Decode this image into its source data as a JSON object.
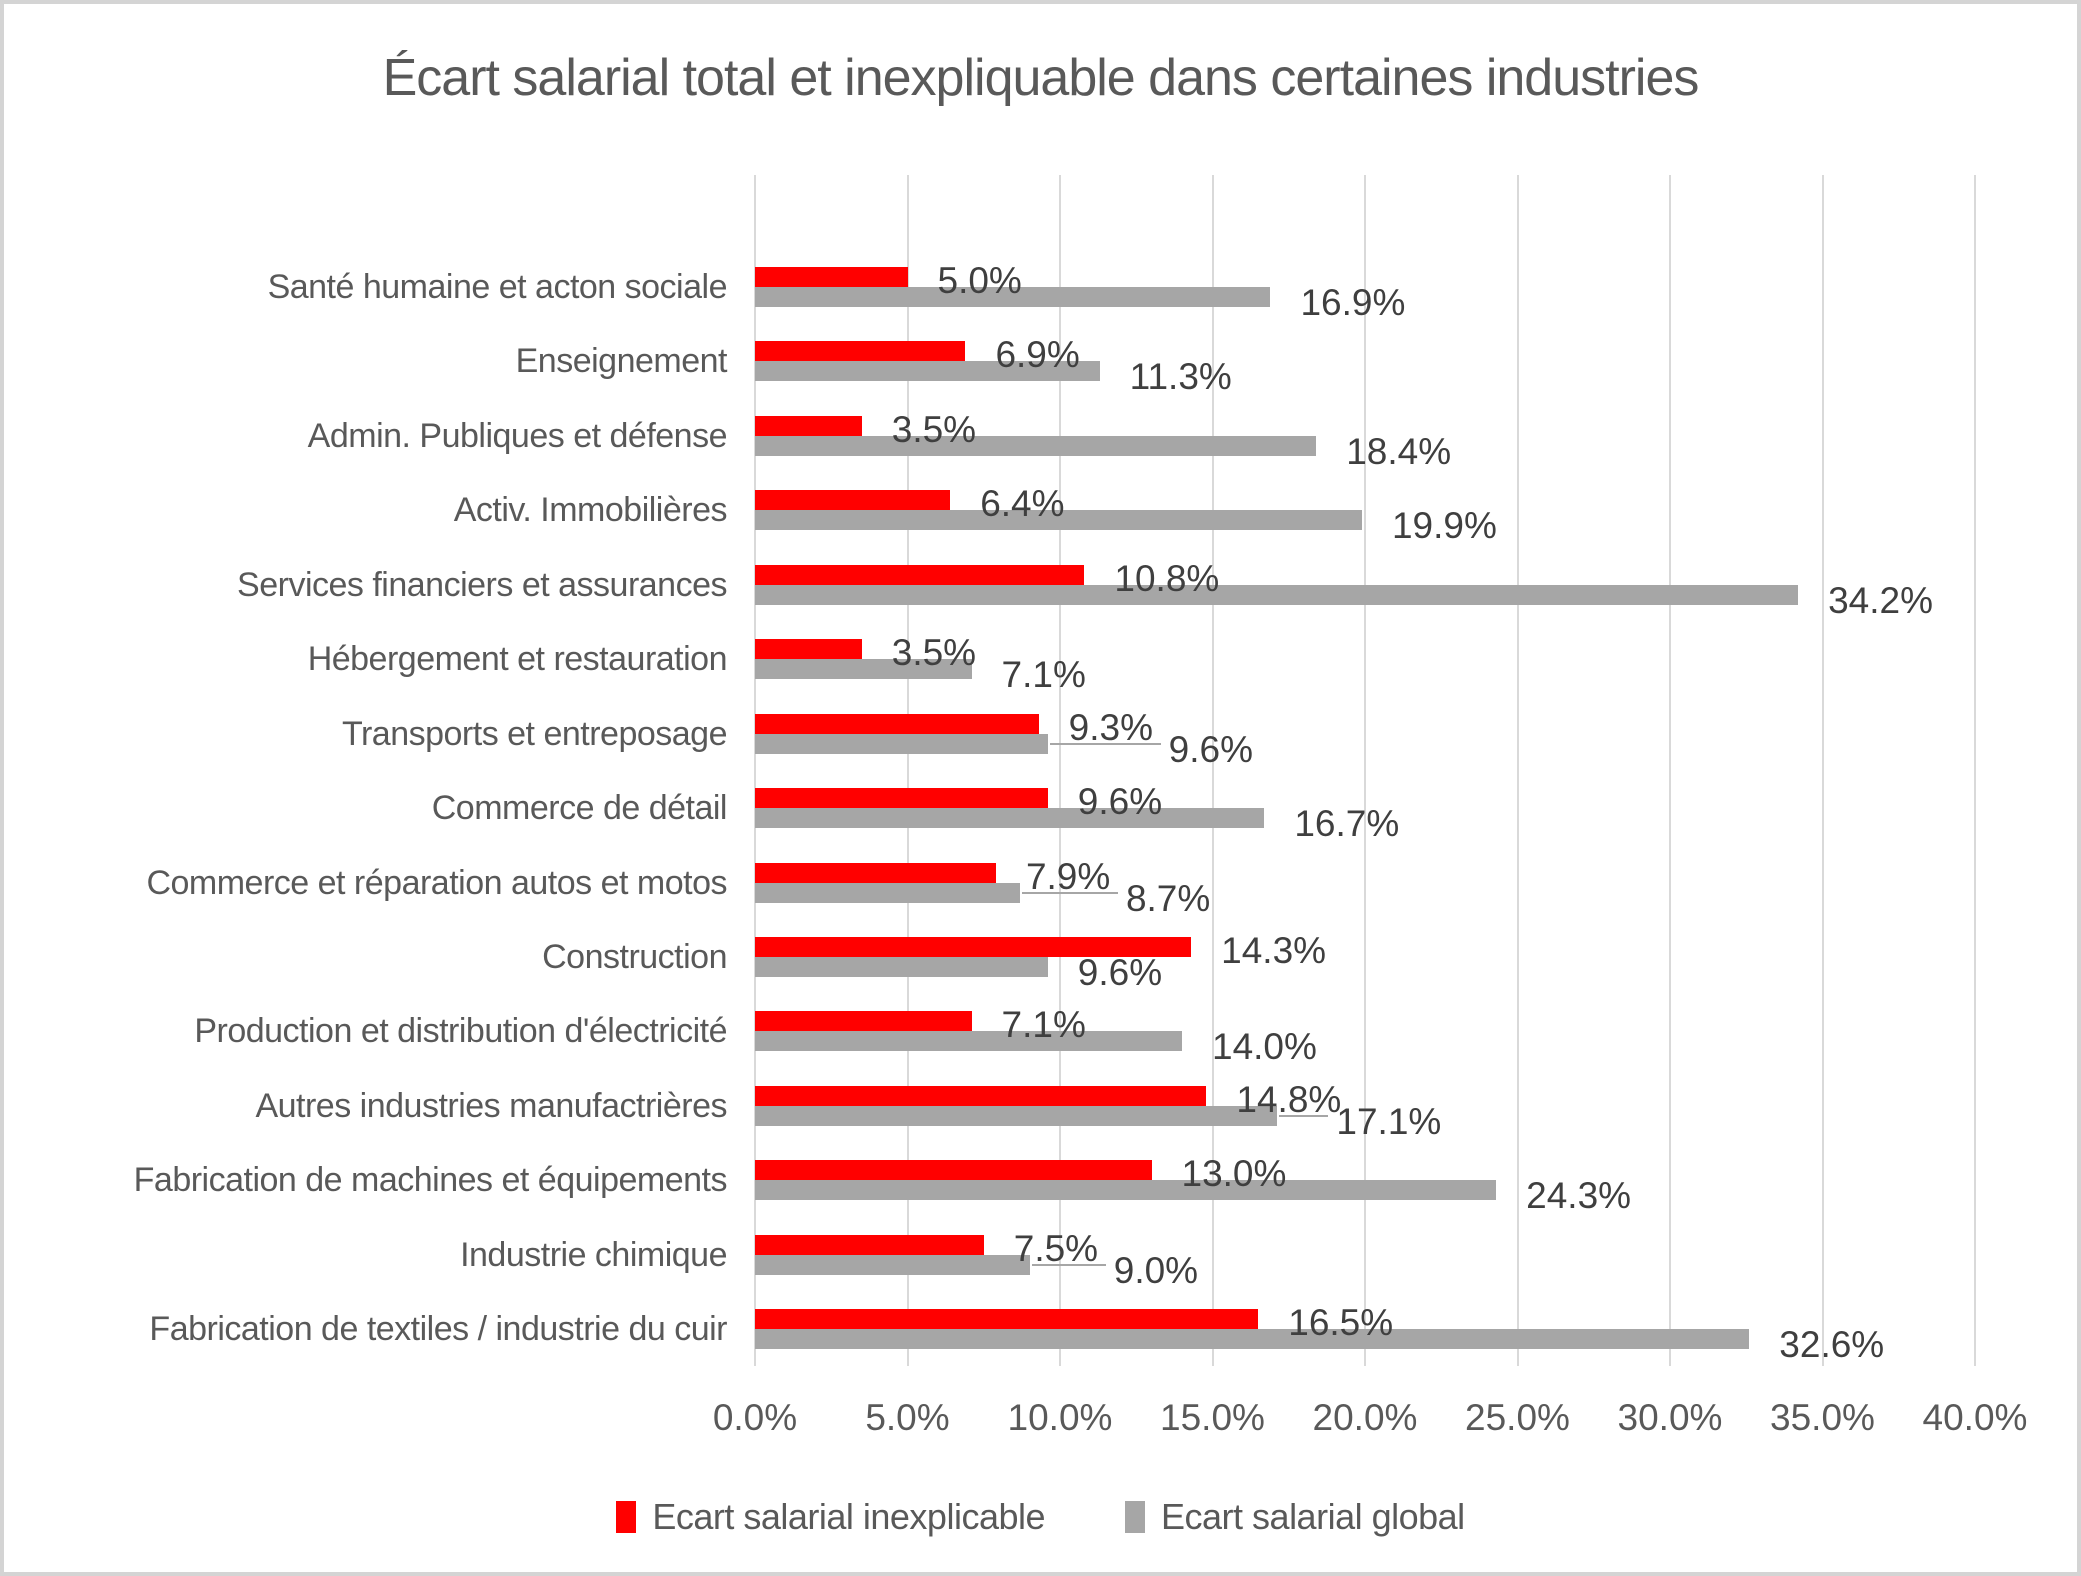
{
  "title": "Écart salarial total et inexpliquable dans certaines industries",
  "chart_data": {
    "type": "bar",
    "orientation": "horizontal",
    "title": "Écart salarial total et inexpliquable dans certaines industries",
    "categories": [
      "Santé humaine et acton sociale",
      "Enseignement",
      "Admin. Publiques et défense",
      "Activ. Immobilières",
      "Services financiers et assurances",
      "Hébergement et restauration",
      "Transports et entreposage",
      "Commerce de détail",
      "Commerce et réparation autos et motos",
      "Construction",
      "Production et distribution d'électricité",
      "Autres industries manufactrières",
      "Fabrication de machines et équipements",
      "Industrie chimique",
      "Fabrication de textiles / industrie du cuir"
    ],
    "series": [
      {
        "name": "Ecart salarial inexplicable",
        "color": "#ff0000",
        "values": [
          5.0,
          6.9,
          3.5,
          6.4,
          10.8,
          3.5,
          9.3,
          9.6,
          7.9,
          14.3,
          7.1,
          14.8,
          13.0,
          7.5,
          16.5
        ],
        "labels": [
          "5.0%",
          "6.9%",
          "3.5%",
          "6.4%",
          "10.8%",
          "3.5%",
          "9.3%",
          "9.6%",
          "7.9%",
          "14.3%",
          "7.1%",
          "14.8%",
          "13.0%",
          "7.5%",
          "16.5%"
        ]
      },
      {
        "name": "Ecart salarial global",
        "color": "#a6a6a6",
        "values": [
          16.9,
          11.3,
          18.4,
          19.9,
          34.2,
          7.1,
          9.6,
          16.7,
          8.7,
          9.6,
          14.0,
          17.1,
          24.3,
          9.0,
          32.6
        ],
        "labels": [
          "16.9%",
          "11.3%",
          "18.4%",
          "19.9%",
          "34.2%",
          "7.1%",
          "9.6%",
          "16.7%",
          "8.7%",
          "9.6%",
          "14.0%",
          "17.1%",
          "24.3%",
          "9.0%",
          "32.6%"
        ]
      }
    ],
    "xlim": [
      0,
      40
    ],
    "x_ticks": [
      "0.0%",
      "5.0%",
      "10.0%",
      "15.0%",
      "20.0%",
      "25.0%",
      "30.0%",
      "35.0%",
      "40.0%"
    ],
    "gridlines": "vertical",
    "legend_position": "bottom",
    "label_leader_rows": [
      6,
      8,
      11,
      13
    ]
  }
}
